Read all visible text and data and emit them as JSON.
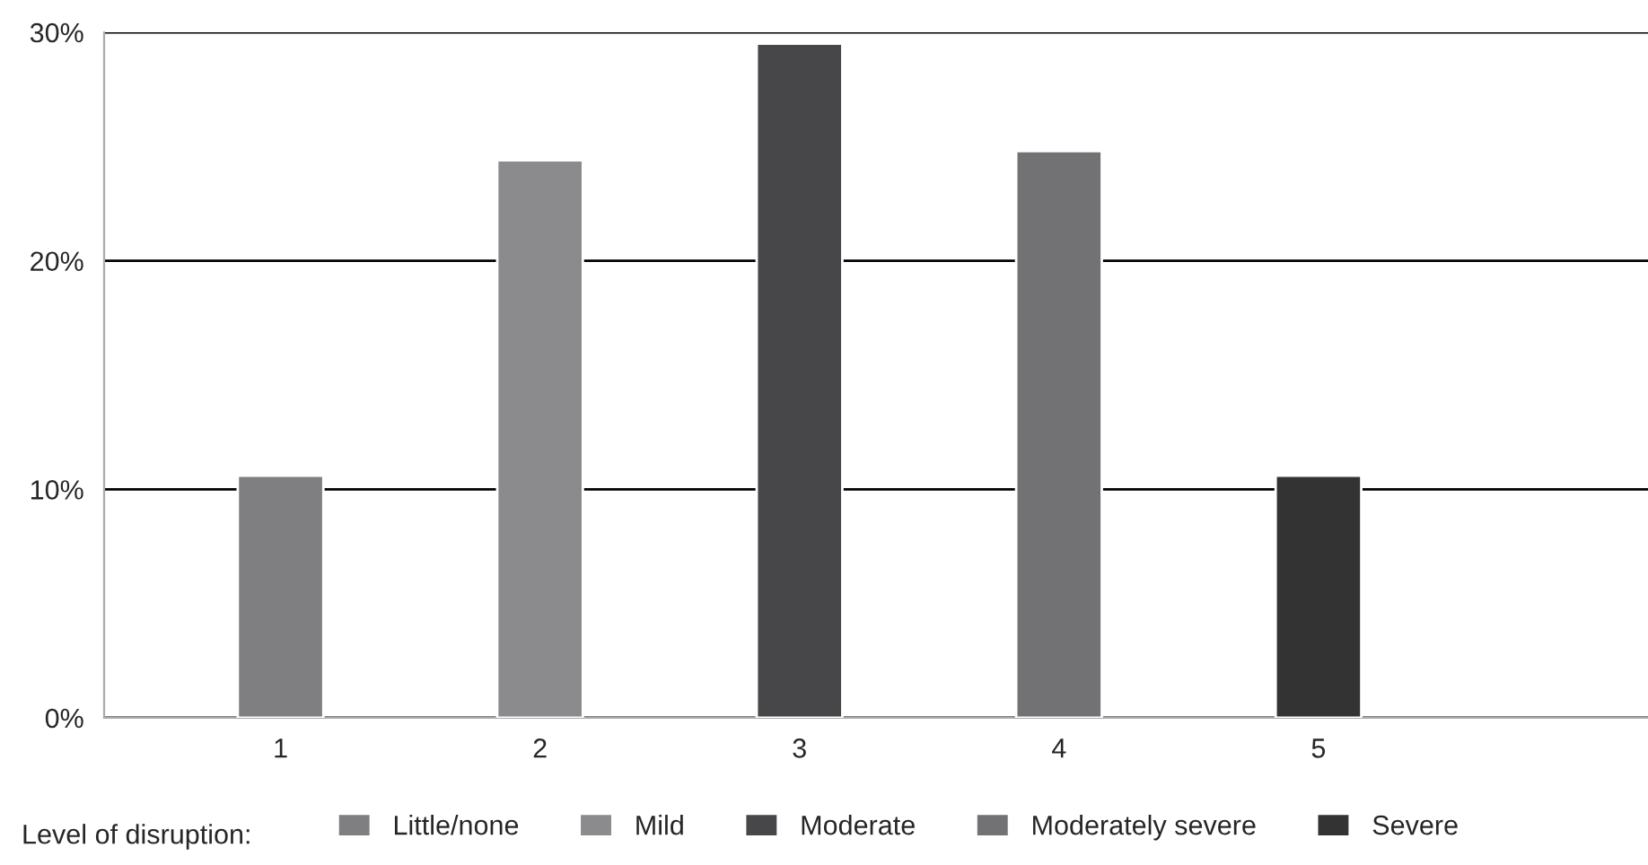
{
  "chart_data": {
    "type": "bar",
    "categories": [
      "1",
      "2",
      "3",
      "4",
      "5"
    ],
    "legend_title": "Level of disruption:",
    "series": [
      {
        "name": "Little/none",
        "color": "#7f7f82",
        "values": [
          10.6,
          null,
          null,
          null,
          null
        ]
      },
      {
        "name": "Mild",
        "color": "#8b8b8e",
        "values": [
          null,
          24.4,
          null,
          null,
          null
        ]
      },
      {
        "name": "Moderate",
        "color": "#474749",
        "values": [
          null,
          null,
          29.5,
          null,
          null
        ]
      },
      {
        "name": "Moderately severe",
        "color": "#727275",
        "values": [
          null,
          null,
          null,
          24.8,
          null
        ]
      },
      {
        "name": "Severe",
        "color": "#333333",
        "values": [
          null,
          null,
          null,
          null,
          10.6
        ]
      }
    ],
    "ylim": [
      0,
      30
    ],
    "yticks": [
      {
        "value": 0,
        "label": "0%"
      },
      {
        "value": 10,
        "label": "10%"
      },
      {
        "value": 20,
        "label": "20%"
      },
      {
        "value": 30,
        "label": "30%"
      }
    ],
    "grid": "y",
    "legend": "bottom"
  }
}
